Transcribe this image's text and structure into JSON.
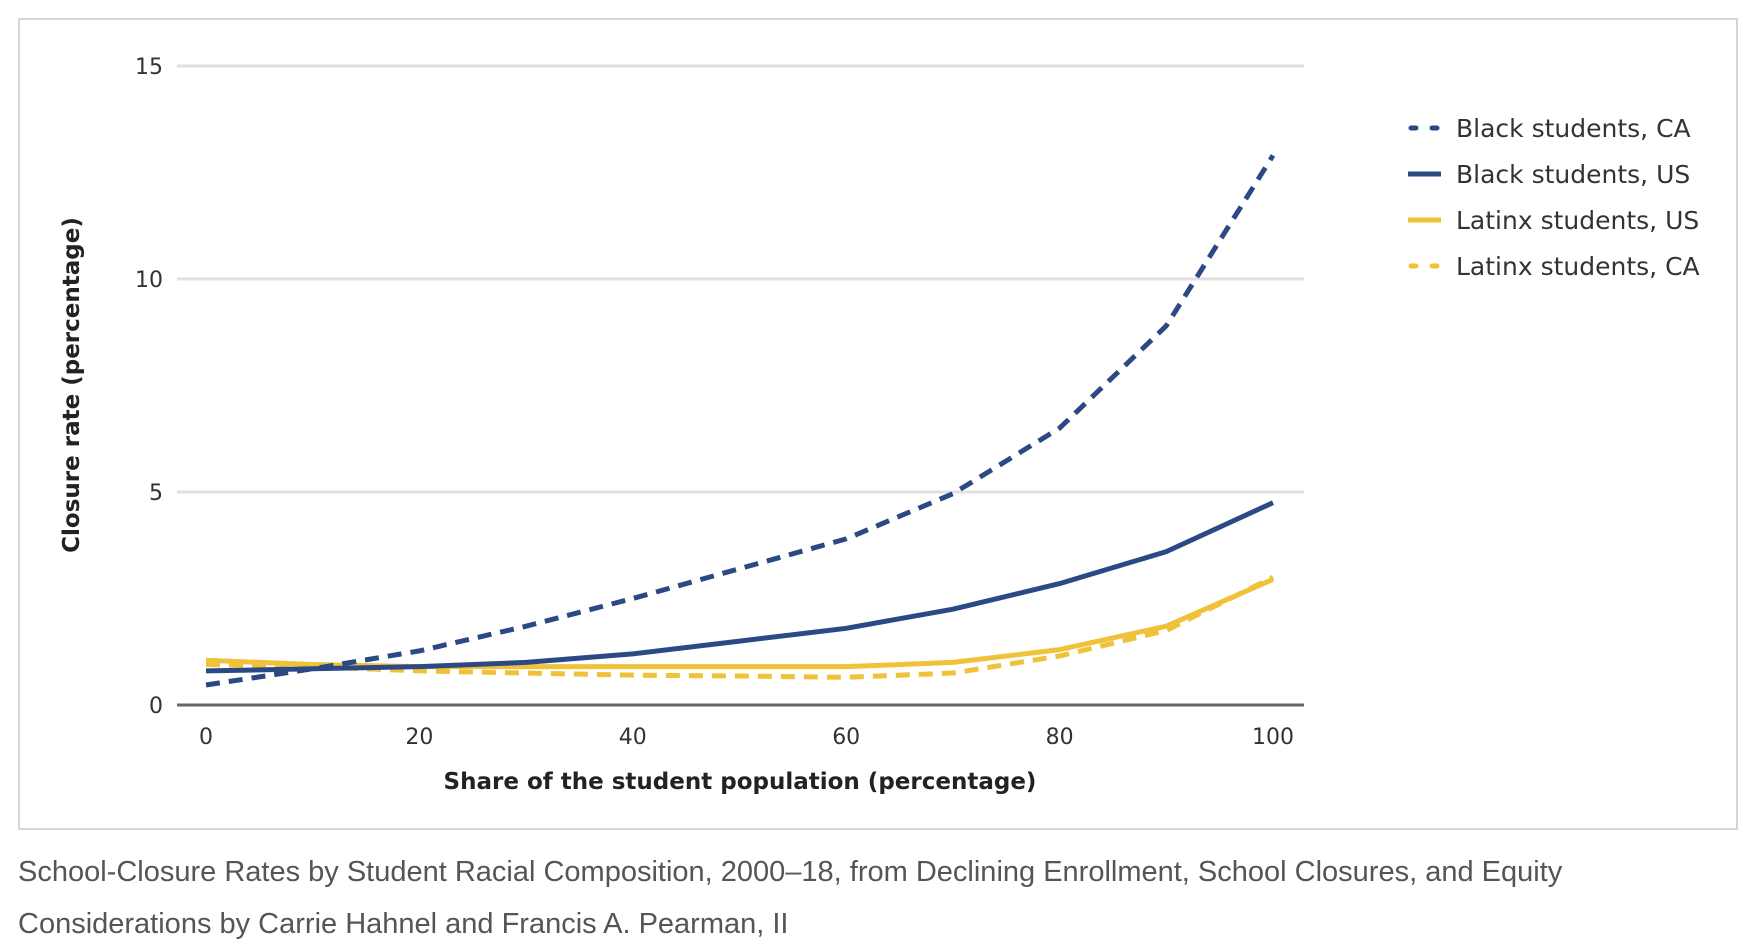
{
  "chart_data": {
    "type": "line",
    "title": "",
    "xlabel": "Share of the student population (percentage)",
    "ylabel": "Closure rate (percentage)",
    "xlim": [
      0,
      100
    ],
    "ylim": [
      0,
      15
    ],
    "xticks": [
      0,
      20,
      40,
      60,
      80,
      100
    ],
    "yticks": [
      0,
      5,
      10,
      15
    ],
    "grid": true,
    "legend_position": "right",
    "x": [
      0,
      10,
      20,
      30,
      40,
      50,
      60,
      70,
      80,
      90,
      100
    ],
    "series": [
      {
        "name": "Black students, CA",
        "color": "#2b4a85",
        "dashed": true,
        "values": [
          0.47,
          0.85,
          1.27,
          1.85,
          2.5,
          3.2,
          3.9,
          4.96,
          6.5,
          8.9,
          12.9
        ]
      },
      {
        "name": "Black students, US",
        "color": "#2b4a85",
        "dashed": false,
        "values": [
          0.8,
          0.85,
          0.9,
          1.0,
          1.2,
          1.5,
          1.8,
          2.25,
          2.85,
          3.6,
          4.75
        ]
      },
      {
        "name": "Latinx students, US",
        "color": "#f0c23a",
        "dashed": false,
        "values": [
          1.05,
          0.95,
          0.9,
          0.9,
          0.9,
          0.9,
          0.9,
          1.0,
          1.3,
          1.85,
          2.95
        ]
      },
      {
        "name": "Latinx students, CA",
        "color": "#f0c23a",
        "dashed": true,
        "values": [
          0.95,
          0.9,
          0.8,
          0.75,
          0.7,
          0.68,
          0.65,
          0.75,
          1.15,
          1.75,
          3.0
        ]
      }
    ]
  },
  "caption": "School-Closure Rates by Student Racial Composition, 2000–18, from Declining Enrollment, School Closures, and Equity Considerations by Carrie Hahnel and Francis A. Pearman, II"
}
